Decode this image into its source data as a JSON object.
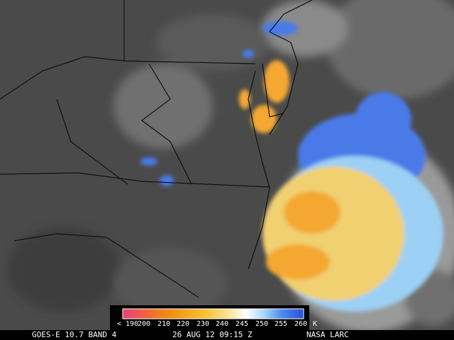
{
  "legend": {
    "labels": [
      "< 190",
      "200",
      "210",
      "220",
      "230",
      "240",
      "245",
      "250",
      "255",
      "260",
      "K"
    ]
  },
  "footer": {
    "satellite": "GOES-E 10.7 BAND 4",
    "time": "26 AUG 12 09:15 Z",
    "source": "NASA LARC"
  }
}
